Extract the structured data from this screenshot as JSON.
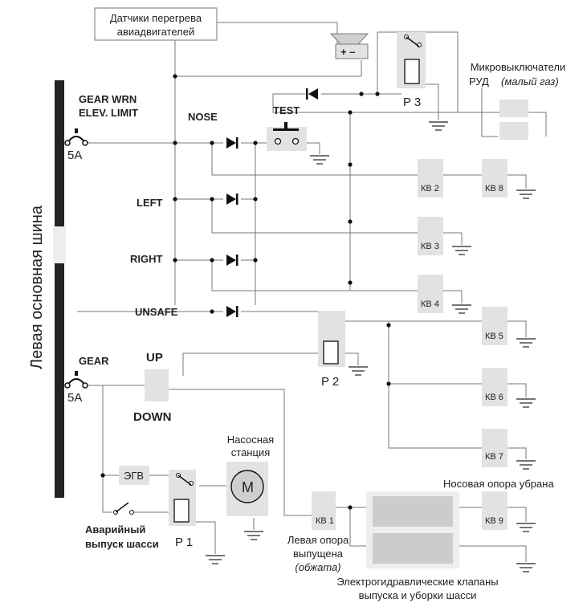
{
  "bus_label": "Левая основная шина",
  "sensor_note": {
    "line1": "Датчики перегрева",
    "line2": "авиадвигателей"
  },
  "microswitch_note": {
    "line1": "Микровыключатели",
    "line2a": "РУД",
    "line2b": "(малый газ)"
  },
  "breaker_top": {
    "line1": "GEAR WRN",
    "line2": "ELEV. LIMIT",
    "rating": "5A"
  },
  "breaker_bottom": {
    "label": "GEAR",
    "rating": "5A"
  },
  "indicators": [
    "NOSE",
    "LEFT",
    "RIGHT",
    "UNSAFE"
  ],
  "test_label": "TEST",
  "horn_polarity": "+ –",
  "relays": {
    "p1": "P 1",
    "p2": "P 2",
    "p3": "P 3"
  },
  "switch_kv": [
    "КВ 1",
    "КВ 2",
    "КВ 3",
    "КВ 4",
    "КВ 5",
    "КВ 6",
    "КВ 7",
    "КВ 8",
    "КВ 9"
  ],
  "gear_lever": {
    "up": "UP",
    "down": "DOWN"
  },
  "egv": "ЭГВ",
  "pump": {
    "line1": "Насосная",
    "line2": "станция",
    "motor": "M"
  },
  "emergency": {
    "line1": "Аварийный",
    "line2": "выпуск шасси"
  },
  "nose_retracted": "Носовая опора убрана",
  "left_gear": {
    "line1": "Левая опора",
    "line2": "выпущена",
    "line3": "(обжата)"
  },
  "valves": {
    "line1": "Электрогидравлические клапаны",
    "line2": "выпуска и уборки шасси"
  }
}
